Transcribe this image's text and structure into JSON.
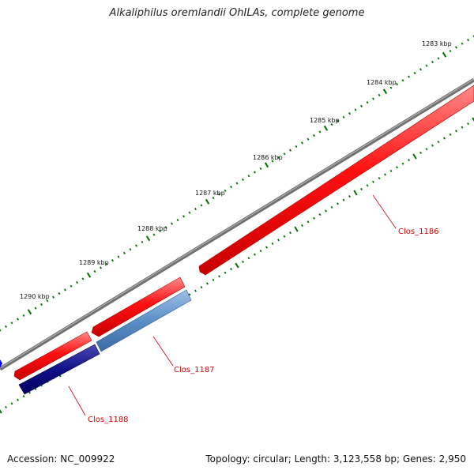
{
  "title": "Alkaliphilus oremlandii OhILAs, complete genome",
  "footer": {
    "accession": "Accession: NC_009922",
    "summary": "Topology: circular; Length: 3,123,558 bp; Genes: 2,950"
  },
  "ticks": [
    "1283 kbp",
    "1284 kbp",
    "1285 kbp",
    "1286 kbp",
    "1287 kbp",
    "1288 kbp",
    "1289 kbp",
    "1290 kbp"
  ],
  "genes": [
    {
      "name": "Clos_1186",
      "strand": "forward",
      "color": "#ff0000"
    },
    {
      "name": "Clos_1187",
      "strand": "reverse",
      "color": "#4f81bd"
    },
    {
      "name": "Clos_1188",
      "strand": "reverse",
      "color": "#000080"
    }
  ],
  "colors": {
    "backbone": "#808080",
    "forward_gene": "#ff0000",
    "tick_marks": "#007000",
    "label_leader": "#d40000",
    "edge_feature": "#0000ff"
  }
}
